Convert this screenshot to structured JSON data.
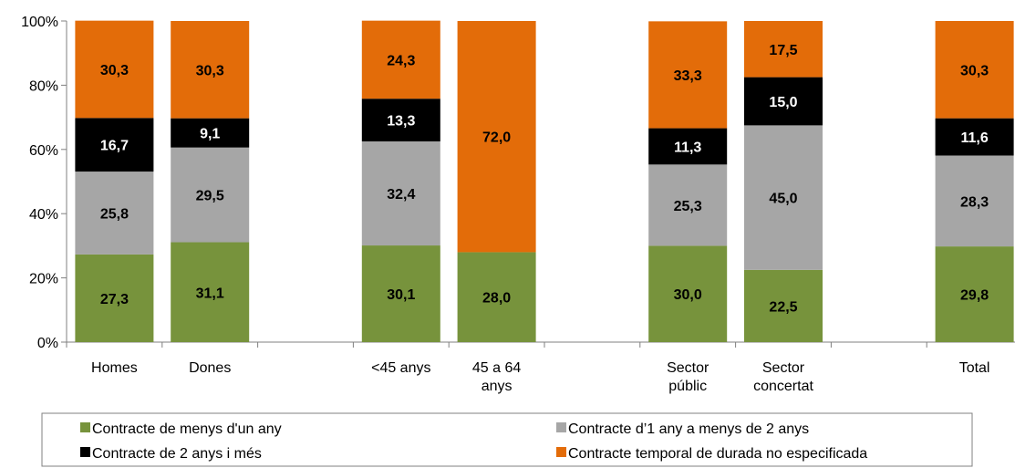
{
  "chart_data": {
    "type": "bar",
    "stacked": true,
    "percent_stacked": true,
    "categories": [
      [
        "Homes"
      ],
      [
        "Dones"
      ],
      [
        "<45 anys"
      ],
      [
        "45 a 64",
        "anys"
      ],
      [
        "Sector",
        "públic"
      ],
      [
        "Sector",
        "concertat"
      ],
      [
        "Total"
      ]
    ],
    "series": [
      {
        "name": "Contracte de menys d'un any",
        "color": "#77933C",
        "label_color": "#000000",
        "values": [
          27.3,
          31.1,
          30.1,
          28.0,
          30.0,
          22.5,
          29.8
        ],
        "labels": [
          "27,3",
          "31,1",
          "30,1",
          "28,0",
          "30,0",
          "22,5",
          "29,8"
        ]
      },
      {
        "name": "Contracte d’1 any a menys de 2 anys",
        "color": "#A6A6A6",
        "label_color": "#000000",
        "values": [
          25.8,
          29.5,
          32.4,
          0,
          25.3,
          45.0,
          28.3
        ],
        "labels": [
          "25,8",
          "29,5",
          "32,4",
          "",
          "25,3",
          "45,0",
          "28,3"
        ]
      },
      {
        "name": "Contracte de 2 anys i més",
        "color": "#000000",
        "label_color": "#FFFFFF",
        "values": [
          16.7,
          9.1,
          13.3,
          0,
          11.3,
          15.0,
          11.6
        ],
        "labels": [
          "16,7",
          "9,1",
          "13,3",
          "",
          "11,3",
          "15,0",
          "11,6"
        ]
      },
      {
        "name": "Contracte temporal de durada no especificada",
        "color": "#E36C09",
        "label_color": "#000000",
        "values": [
          30.3,
          30.3,
          24.3,
          72.0,
          33.3,
          17.5,
          30.3
        ],
        "labels": [
          "30,3",
          "30,3",
          "24,3",
          "72,0",
          "33,3",
          "17,5",
          "30,3"
        ]
      }
    ],
    "y_ticks": [
      "0%",
      "20%",
      "40%",
      "60%",
      "80%",
      "100%"
    ],
    "ylim": [
      0,
      100
    ],
    "grid": false,
    "legend_position": "bottom"
  }
}
